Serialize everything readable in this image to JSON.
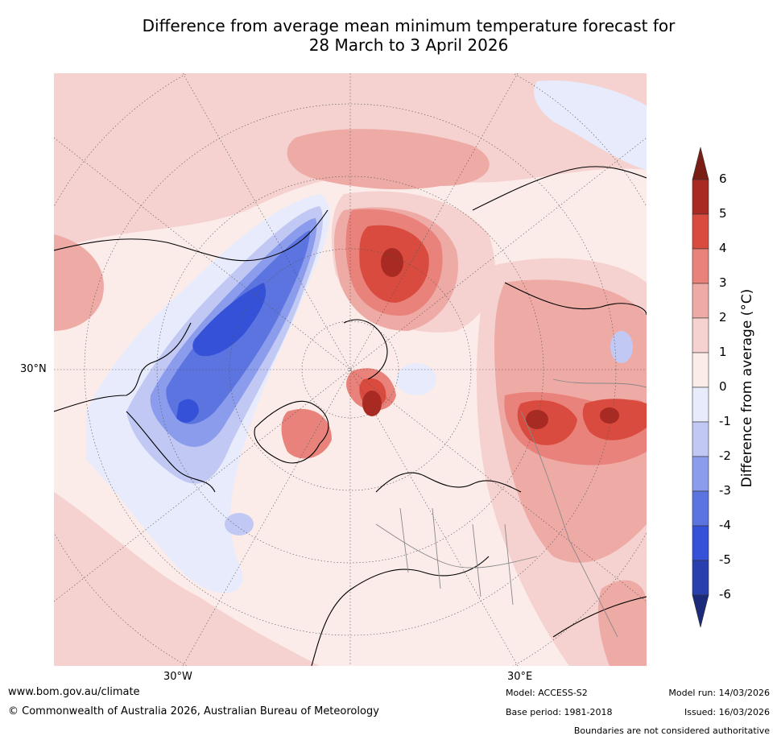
{
  "title": {
    "line1": "Difference from average mean minimum temperature forecast for",
    "line2": "28 March to 3 April 2026"
  },
  "map": {
    "lat_label": "30°N",
    "lon_labels": [
      "30°W",
      "30°E"
    ],
    "region": "Northern Hemisphere polar projection"
  },
  "colorbar": {
    "label": "Difference from average (°C)",
    "ticks": [
      "6",
      "5",
      "4",
      "3",
      "2",
      "1",
      "0",
      "-1",
      "-2",
      "-3",
      "-4",
      "-5",
      "-6"
    ],
    "colors": {
      "above_6": "#7a1d14",
      "c5_6": "#a82a22",
      "c4_5": "#d94b3f",
      "c3_4": "#e8827a",
      "c2_3": "#eeaaa5",
      "c1_2": "#f5d2cf",
      "c0_1": "#fbecea",
      "cm1_0": "#e7ebfb",
      "cm2_m1": "#c0c8f3",
      "cm3_m2": "#8b9cec",
      "cm4_m3": "#5b74e0",
      "cm5_m4": "#3551d8",
      "cm6_m5": "#2a3fae",
      "below_m6": "#1c2a7a"
    }
  },
  "footer": {
    "url": "www.bom.gov.au/climate",
    "copyright": "© Commonwealth of Australia 2026, Australian Bureau of Meteorology",
    "model": "Model: ACCESS-S2",
    "base_period": "Base period: 1981-2018",
    "model_run": "Model run: 14/03/2026",
    "issued": "Issued: 16/03/2026",
    "disclaimer": "Boundaries are not considered authoritative"
  }
}
